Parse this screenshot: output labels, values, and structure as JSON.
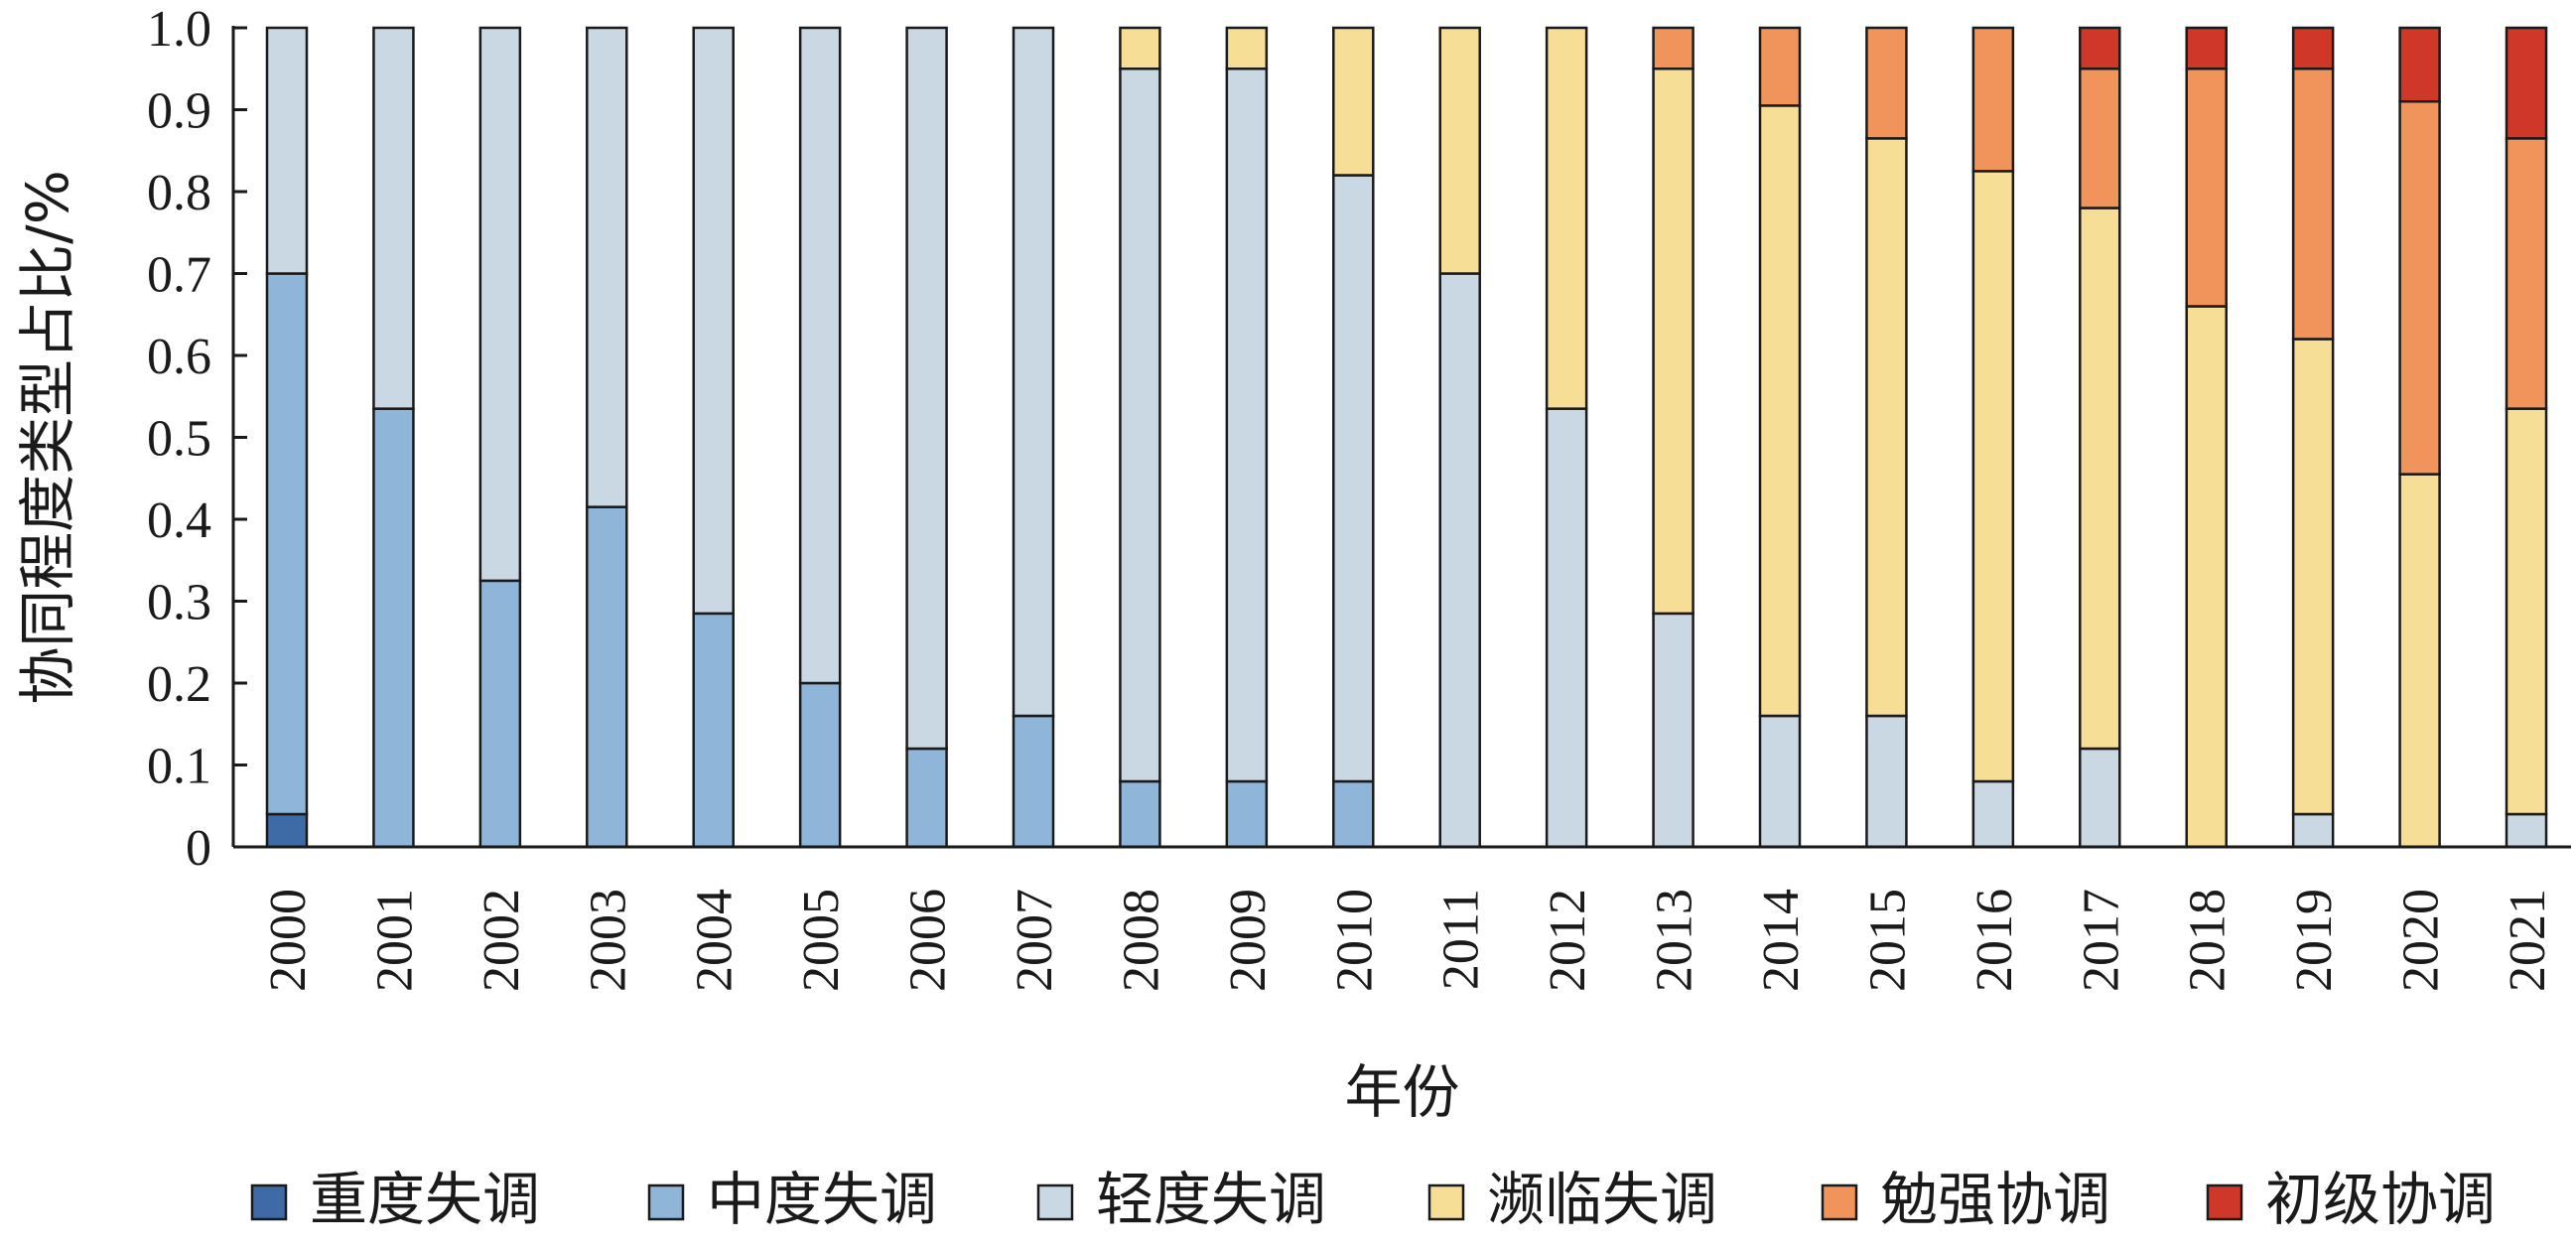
{
  "chart_data": {
    "type": "bar",
    "stacked": true,
    "title": "",
    "xlabel": "年份",
    "ylabel": "协同程度类型占比/%",
    "ylim": [
      0,
      1.0
    ],
    "yticks": [
      "0",
      "0.1",
      "0.2",
      "0.3",
      "0.4",
      "0.5",
      "0.6",
      "0.7",
      "0.8",
      "0.9",
      "1.0"
    ],
    "grid": false,
    "legend_position": "bottom",
    "categories": [
      "2000",
      "2001",
      "2002",
      "2003",
      "2004",
      "2005",
      "2006",
      "2007",
      "2008",
      "2009",
      "2010",
      "2011",
      "2012",
      "2013",
      "2014",
      "2015",
      "2016",
      "2017",
      "2018",
      "2019",
      "2020",
      "2021"
    ],
    "series": [
      {
        "name": "重度失调",
        "color": "#3e6aa5",
        "values": [
          0.04,
          0,
          0,
          0,
          0,
          0,
          0,
          0,
          0,
          0,
          0,
          0,
          0,
          0,
          0,
          0,
          0,
          0,
          0,
          0,
          0,
          0
        ]
      },
      {
        "name": "中度失调",
        "color": "#8fb5d9",
        "values": [
          0.66,
          0.535,
          0.325,
          0.415,
          0.285,
          0.2,
          0.12,
          0.16,
          0.08,
          0.08,
          0.08,
          0,
          0,
          0,
          0,
          0,
          0,
          0,
          0,
          0,
          0,
          0
        ]
      },
      {
        "name": "轻度失调",
        "color": "#c9d8e3",
        "values": [
          0.3,
          0.465,
          0.675,
          0.585,
          0.715,
          0.8,
          0.88,
          0.84,
          0.87,
          0.87,
          0.74,
          0.7,
          0.535,
          0.285,
          0.16,
          0.16,
          0.08,
          0.12,
          0,
          0.04,
          0,
          0.04
        ]
      },
      {
        "name": "濒临失调",
        "color": "#f6de96",
        "values": [
          0,
          0,
          0,
          0,
          0,
          0,
          0,
          0,
          0.05,
          0.05,
          0.18,
          0.3,
          0.465,
          0.665,
          0.745,
          0.705,
          0.745,
          0.66,
          0.66,
          0.58,
          0.455,
          0.495
        ]
      },
      {
        "name": "勉强协调",
        "color": "#f0945c",
        "values": [
          0,
          0,
          0,
          0,
          0,
          0,
          0,
          0,
          0,
          0,
          0,
          0,
          0,
          0.05,
          0.095,
          0.135,
          0.175,
          0.17,
          0.29,
          0.33,
          0.455,
          0.33
        ]
      },
      {
        "name": "初级协调",
        "color": "#cf3728",
        "values": [
          0,
          0,
          0,
          0,
          0,
          0,
          0,
          0,
          0,
          0,
          0,
          0,
          0,
          0,
          0,
          0,
          0,
          0.05,
          0.05,
          0.05,
          0.09,
          0.135
        ]
      }
    ]
  }
}
